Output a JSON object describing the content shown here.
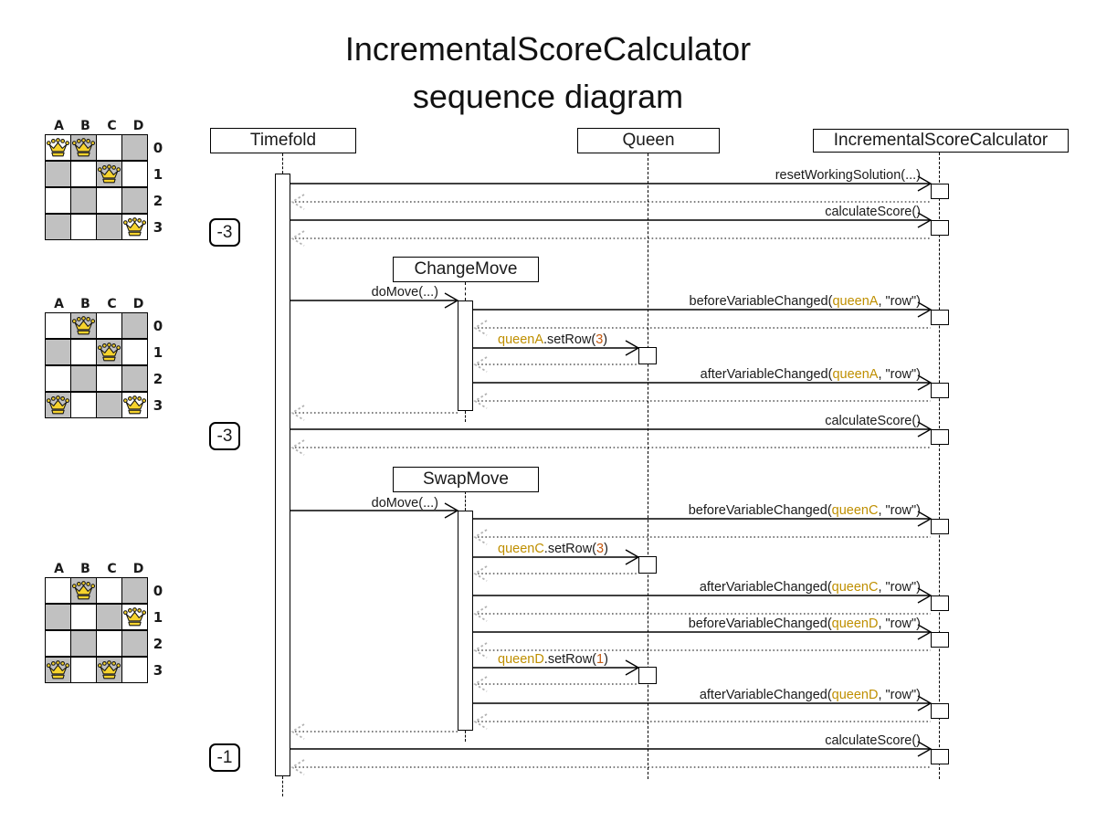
{
  "title": {
    "line1": "IncrementalScoreCalculator",
    "line2": "sequence diagram"
  },
  "lifelines": [
    {
      "label": "Timefold"
    },
    {
      "label": "Queen"
    },
    {
      "label": "IncrementalScoreCalculator"
    }
  ],
  "activations": [
    {
      "label": "ChangeMove"
    },
    {
      "label": "SwapMove"
    }
  ],
  "scores": [
    {
      "label": "-3"
    },
    {
      "label": "-3"
    },
    {
      "label": "-1"
    }
  ],
  "colors": {
    "queen_reference": "#bf8f00",
    "number_literal": "#c55a11",
    "board_gray": "#c1c1c1",
    "crown_yellow": "#f6d32d",
    "move_arrow": "#e0a23e",
    "move_arrow_outline": "#8b5e14"
  },
  "messages": {
    "reset": [
      {
        "t": "resetWorkingSolution(...)"
      }
    ],
    "calc1": [
      {
        "t": "calculateScore()"
      }
    ],
    "domove1": [
      {
        "t": "doMove(...)"
      }
    ],
    "before_a": [
      {
        "t": "beforeVariableChanged("
      },
      {
        "t": "queenA",
        "c": "q"
      },
      {
        "t": ", \"row\")"
      }
    ],
    "setrow_a": [
      {
        "t": "queenA",
        "c": "q"
      },
      {
        "t": ".setRow("
      },
      {
        "t": "3",
        "c": "n"
      },
      {
        "t": ")"
      }
    ],
    "after_a": [
      {
        "t": "afterVariableChanged("
      },
      {
        "t": "queenA",
        "c": "q"
      },
      {
        "t": ", \"row\")"
      }
    ],
    "calc2": [
      {
        "t": "calculateScore()"
      }
    ],
    "domove2": [
      {
        "t": "doMove(...)"
      }
    ],
    "before_c": [
      {
        "t": "beforeVariableChanged("
      },
      {
        "t": "queenC",
        "c": "q"
      },
      {
        "t": ", \"row\")"
      }
    ],
    "setrow_c": [
      {
        "t": "queenC",
        "c": "q"
      },
      {
        "t": ".setRow("
      },
      {
        "t": "3",
        "c": "n"
      },
      {
        "t": ")"
      }
    ],
    "after_c": [
      {
        "t": "afterVariableChanged("
      },
      {
        "t": "queenC",
        "c": "q"
      },
      {
        "t": ", \"row\")"
      }
    ],
    "before_d": [
      {
        "t": "beforeVariableChanged("
      },
      {
        "t": "queenD",
        "c": "q"
      },
      {
        "t": ", \"row\")"
      }
    ],
    "setrow_d": [
      {
        "t": "queenD",
        "c": "q"
      },
      {
        "t": ".setRow("
      },
      {
        "t": "1",
        "c": "n"
      },
      {
        "t": ")"
      }
    ],
    "after_d": [
      {
        "t": "afterVariableChanged("
      },
      {
        "t": "queenD",
        "c": "q"
      },
      {
        "t": ", \"row\")"
      }
    ],
    "calc3": [
      {
        "t": "calculateScore()"
      }
    ]
  },
  "boards": [
    {
      "columns": [
        "A",
        "B",
        "C",
        "D"
      ],
      "rows": [
        "0",
        "1",
        "2",
        "3"
      ],
      "queens": [
        {
          "col": "A",
          "row": "0"
        },
        {
          "col": "B",
          "row": "0"
        },
        {
          "col": "C",
          "row": "1"
        },
        {
          "col": "D",
          "row": "3"
        }
      ]
    },
    {
      "columns": [
        "A",
        "B",
        "C",
        "D"
      ],
      "rows": [
        "0",
        "1",
        "2",
        "3"
      ],
      "queens": [
        {
          "col": "B",
          "row": "0"
        },
        {
          "col": "C",
          "row": "1"
        },
        {
          "col": "A",
          "row": "3"
        },
        {
          "col": "D",
          "row": "3"
        }
      ],
      "move_arrow": {
        "from": "A0",
        "to": "A3"
      }
    },
    {
      "columns": [
        "A",
        "B",
        "C",
        "D"
      ],
      "rows": [
        "0",
        "1",
        "2",
        "3"
      ],
      "queens": [
        {
          "col": "B",
          "row": "0"
        },
        {
          "col": "D",
          "row": "1"
        },
        {
          "col": "A",
          "row": "3"
        },
        {
          "col": "C",
          "row": "3"
        }
      ],
      "move_arrow": {
        "from": "D1",
        "to": "C3",
        "bidirectional": true
      }
    }
  ]
}
